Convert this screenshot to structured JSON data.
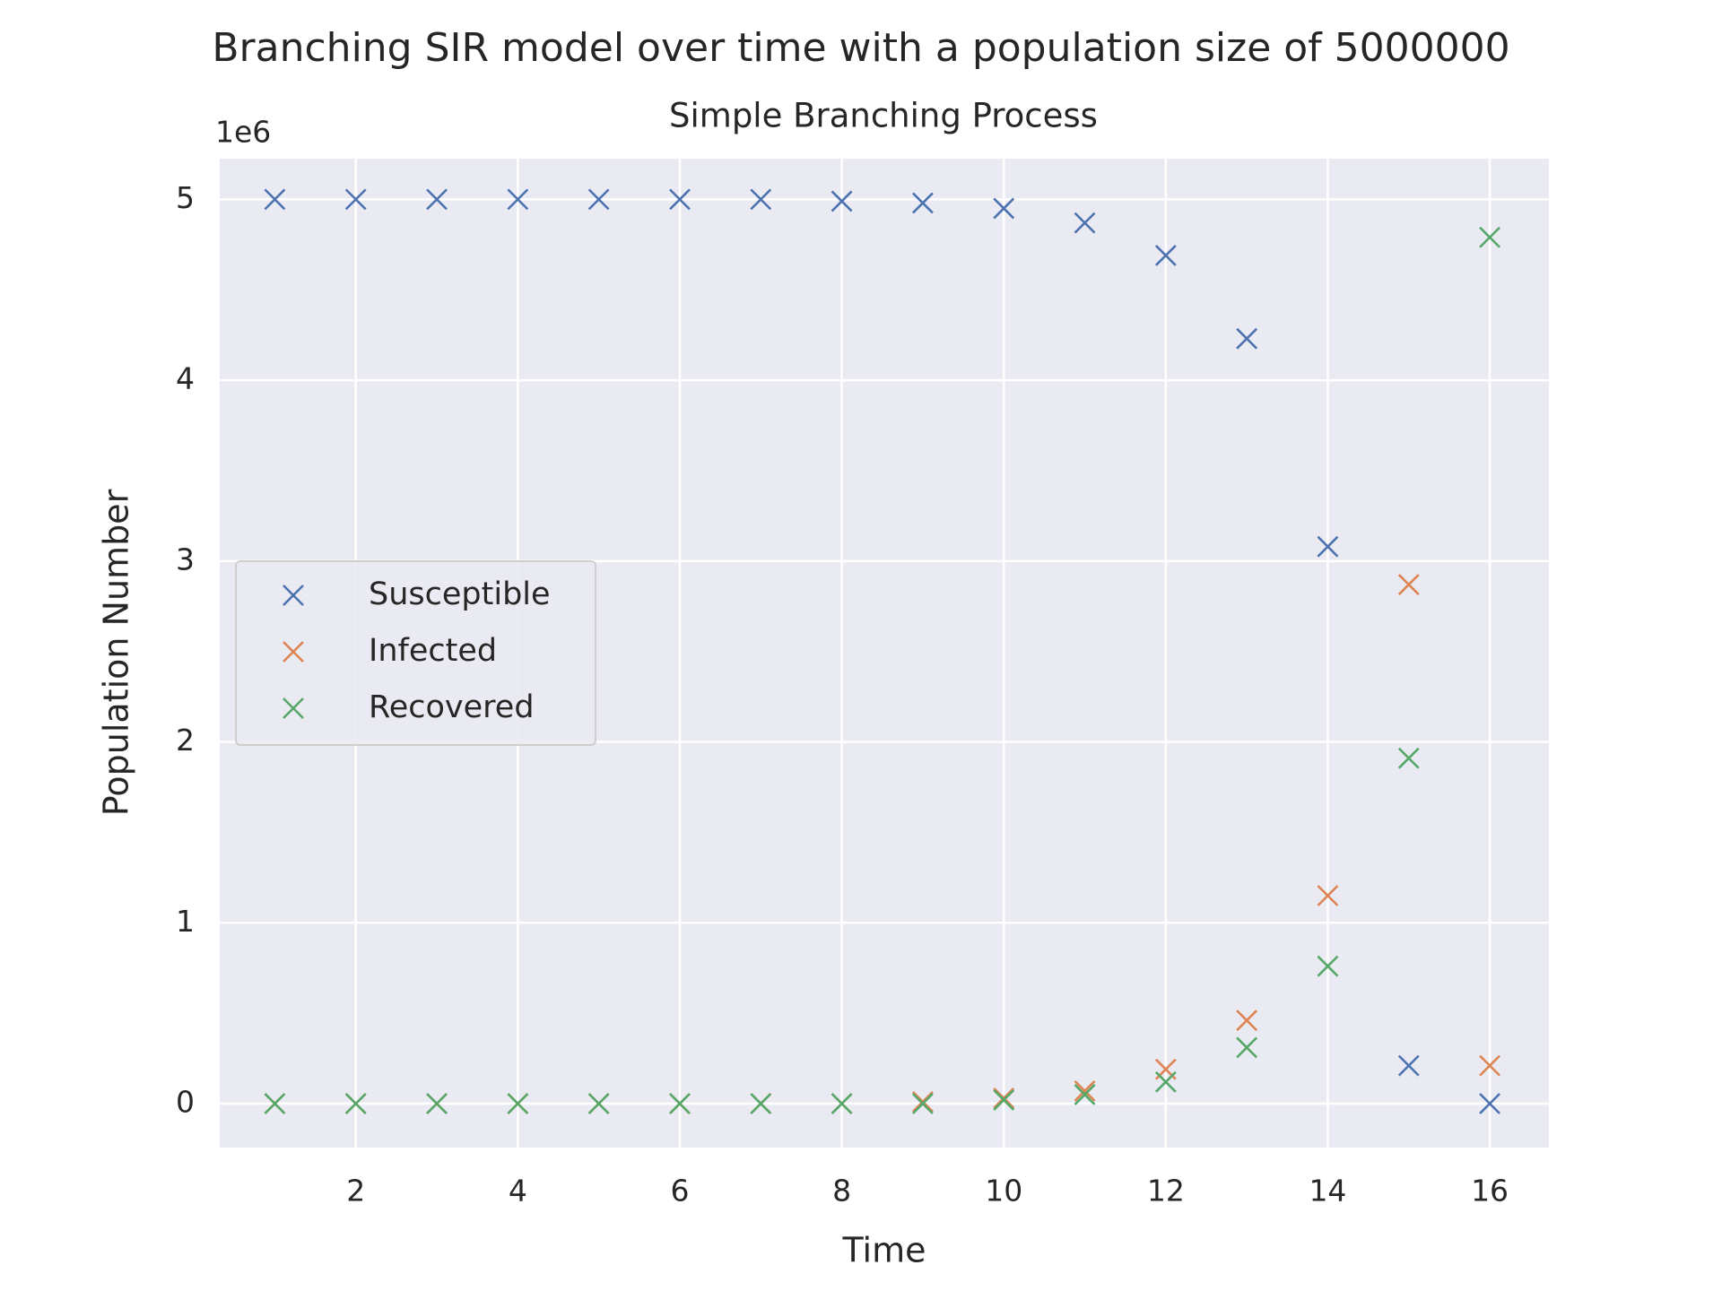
{
  "chart_data": {
    "type": "scatter",
    "title": "Branching SIR model over time with a population size of 5000000",
    "subtitle": "Simple Branching Process",
    "xlabel": "Time",
    "ylabel": "Population Number",
    "offset_text": "1e6",
    "x": [
      1,
      2,
      3,
      4,
      5,
      6,
      7,
      8,
      9,
      10,
      11,
      12,
      13,
      14,
      15,
      16
    ],
    "series": [
      {
        "name": "Susceptible",
        "color": "#4c72b0",
        "values": [
          5.0,
          5.0,
          5.0,
          5.0,
          5.0,
          5.0,
          5.0,
          4.99,
          4.98,
          4.95,
          4.87,
          4.69,
          4.23,
          3.08,
          0.21,
          0
        ]
      },
      {
        "name": "Infected",
        "color": "#dd8452",
        "values": [
          0,
          0,
          0,
          0,
          0,
          0,
          0,
          0,
          0.01,
          0.03,
          0.07,
          0.19,
          0.46,
          1.15,
          2.87,
          0.21
        ]
      },
      {
        "name": "Recovered",
        "color": "#55a868",
        "values": [
          0,
          0,
          0,
          0,
          0,
          0,
          0,
          0,
          0,
          0.02,
          0.05,
          0.12,
          0.31,
          0.76,
          1.91,
          4.79
        ]
      }
    ],
    "xlim": [
      0.32,
      16.73
    ],
    "xticks": [
      2,
      4,
      6,
      8,
      10,
      12,
      14,
      16
    ],
    "ylim": [
      -0.243,
      5.225
    ],
    "yticks": [
      0,
      1,
      2,
      3,
      4,
      5
    ],
    "grid": true,
    "legend": "center left"
  }
}
